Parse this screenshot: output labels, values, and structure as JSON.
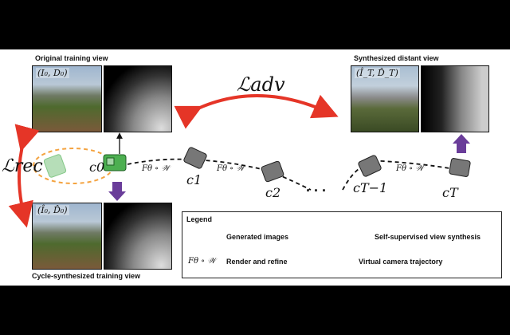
{
  "captions": {
    "original": "Original training view",
    "synthesized": "Synthesized distant view",
    "cycle": "Cycle-synthesized training view"
  },
  "tags": {
    "original": "(I₀, D₀)",
    "cycle": "(Î₀, D̂₀)",
    "synth": "(Î_T, D̂_T)"
  },
  "losses": {
    "adv": "ℒadv",
    "rec": "ℒrec"
  },
  "cameras": [
    {
      "label": "c0",
      "sub": "0"
    },
    {
      "label": "c1",
      "sub": "1"
    },
    {
      "label": "c2",
      "sub": "2"
    },
    {
      "label": "cT−1",
      "sub": "T−1"
    },
    {
      "label": "cT",
      "sub": "T"
    }
  ],
  "operator": "Fθ ∘ 𝒲",
  "ellipsis": ". . .",
  "legend": {
    "title": "Legend",
    "generated": "Generated images",
    "selfsup": "Self-supervised view synthesis",
    "render": "Render and refine",
    "trajectory": "Virtual camera trajectory"
  },
  "colors": {
    "red": "#e53527",
    "purple": "#6a3d9a",
    "orange": "#f4a340",
    "green": "#4caf50",
    "gray": "#555555"
  }
}
